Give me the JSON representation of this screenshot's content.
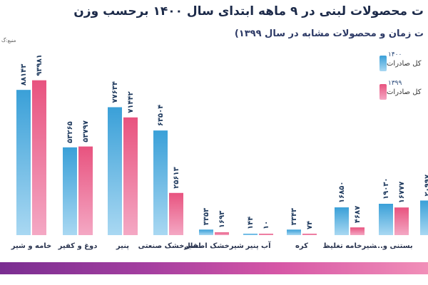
{
  "title": "ت محصولات لبنی در ۹ ماهه ابتدای سال ۱۴۰۰ برحسب وزن",
  "subtitle": "ت زمان و محصولات مشابه در سال ۱۳۹۹)",
  "source": "منبع:گ",
  "legend": [
    {
      "year": "۱۴۰۰",
      "name": "کل صادرات",
      "color": "#3aa0d8"
    },
    {
      "year": "۱۳۹۹",
      "name": "کل صادرات",
      "color": "#e8537f"
    }
  ],
  "chart_data": {
    "type": "bar",
    "title": "ت محصولات لبنی در ۹ ماهه ابتدای سال ۱۴۰۰ برحسب وزن",
    "ylim": [
      0,
      100000
    ],
    "grid": false,
    "legend_position": "top-right",
    "categories": [
      "",
      "خامه و شیر",
      "دوغ و کفیر",
      "پنیر",
      "شیرخشک صنعتی",
      "شیرخشک اطفال",
      "آب پنیر",
      "کره",
      "شیرخامه تغلیظ",
      "بستنی و...",
      ""
    ],
    "series": [
      {
        "name": "۱۴۰۰",
        "values": [
          null,
          88143,
          53265,
          77634,
          63504,
          3353,
          144,
          3343,
          16850,
          19030,
          20997
        ],
        "labels": [
          "",
          "۸۸۱۴۳",
          "۵۳۲۶۵",
          "۷۷۶۳۴",
          "۶۳۵۰۴",
          "۳۳۵۳",
          "۱۴۴",
          "۳۳۴۳",
          "۱۶۸۵۰",
          "۱۹۰۳۰",
          "۲۰۹۹۷"
        ]
      },
      {
        "name": "۱۳۹۹",
        "values": [
          null,
          93981,
          53797,
          71442,
          25613,
          1693,
          10,
          74,
          4687,
          16777,
          null
        ],
        "labels": [
          "",
          "۹۳۹۸۱",
          "۵۳۷۹۷",
          "۷۱۴۴۲",
          "۲۵۶۱۳",
          "۱۶۹۳",
          "۱۰",
          "۷۴",
          "۴۶۸۷",
          "۱۶۷۷۷",
          ""
        ]
      }
    ]
  }
}
